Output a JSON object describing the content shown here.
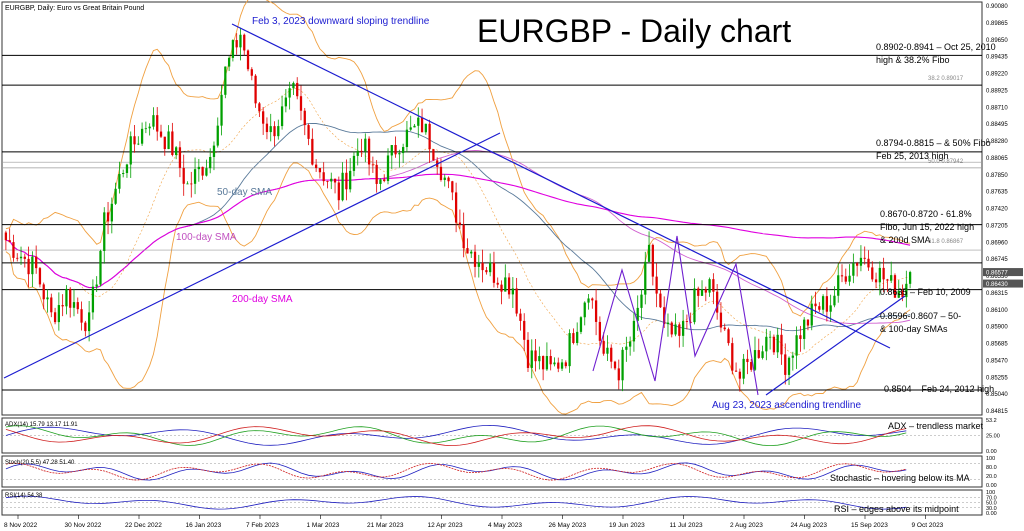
{
  "header": {
    "symbol_line": "EURGBP, Daily:  Euro vs Great Britain Pound"
  },
  "title": "EURGBP - Daily chart",
  "colors": {
    "bull": "#00a000",
    "bear": "#e00000",
    "trendline": "#1c1cd0",
    "sma50": "#5a7a9a",
    "sma100": "#d060d0",
    "sma200": "#e000e0",
    "bands": "#f0a040",
    "level": "#000000",
    "fibo": "#9a9a9a",
    "indicator": "#2020c0",
    "signal": "#d02020"
  },
  "chart_data": [
    {
      "type": "candlestick",
      "title": "EURGBP - Daily chart",
      "ylim": [
        0.8474,
        0.9008
      ],
      "y_ticks": [
        "0.90080",
        "0.89865",
        "0.89650",
        "0.89435",
        "0.89220",
        "0.88925",
        "0.88710",
        "0.88495",
        "0.88280",
        "0.88065",
        "0.87850",
        "0.87635",
        "0.87420",
        "0.87205",
        "0.86960",
        "0.86745",
        "0.86530",
        "0.86315",
        "0.86100",
        "0.85900",
        "0.85685",
        "0.85470",
        "0.85255",
        "0.85040",
        "0.84815"
      ],
      "x_ticks": [
        "8 Nov 2022",
        "30 Nov 2022",
        "22 Dec 2022",
        "16 Jan 2023",
        "7 Feb 2023",
        "1 Mar 2023",
        "21 Mar 2023",
        "12 Apr 2023",
        "4 May 2023",
        "26 May 2023",
        "19 Jun 2023",
        "11 Jul 2023",
        "2 Aug 2023",
        "24 Aug 2023",
        "15 Sep 2023",
        "9 Oct 2023"
      ],
      "price_labels": [
        "0.86577",
        "0.86430"
      ],
      "path_points": [
        {
          "i": 0,
          "p": 0.87
        },
        {
          "i": 8,
          "p": 0.866
        },
        {
          "i": 12,
          "p": 0.86
        },
        {
          "i": 16,
          "p": 0.863
        },
        {
          "i": 22,
          "p": 0.859
        },
        {
          "i": 26,
          "p": 0.872
        },
        {
          "i": 32,
          "p": 0.881
        },
        {
          "i": 38,
          "p": 0.886
        },
        {
          "i": 44,
          "p": 0.882
        },
        {
          "i": 48,
          "p": 0.877
        },
        {
          "i": 54,
          "p": 0.881
        },
        {
          "i": 58,
          "p": 0.892
        },
        {
          "i": 62,
          "p": 0.897
        },
        {
          "i": 66,
          "p": 0.888
        },
        {
          "i": 70,
          "p": 0.884
        },
        {
          "i": 76,
          "p": 0.889
        },
        {
          "i": 82,
          "p": 0.88
        },
        {
          "i": 88,
          "p": 0.876
        },
        {
          "i": 94,
          "p": 0.883
        },
        {
          "i": 98,
          "p": 0.877
        },
        {
          "i": 104,
          "p": 0.883
        },
        {
          "i": 110,
          "p": 0.885
        },
        {
          "i": 114,
          "p": 0.881
        },
        {
          "i": 118,
          "p": 0.875
        },
        {
          "i": 122,
          "p": 0.869
        },
        {
          "i": 128,
          "p": 0.866
        },
        {
          "i": 134,
          "p": 0.864
        },
        {
          "i": 138,
          "p": 0.855
        },
        {
          "i": 144,
          "p": 0.853
        },
        {
          "i": 148,
          "p": 0.855
        },
        {
          "i": 154,
          "p": 0.864
        },
        {
          "i": 158,
          "p": 0.855
        },
        {
          "i": 162,
          "p": 0.853
        },
        {
          "i": 166,
          "p": 0.858
        },
        {
          "i": 170,
          "p": 0.868
        },
        {
          "i": 174,
          "p": 0.858
        },
        {
          "i": 178,
          "p": 0.857
        },
        {
          "i": 182,
          "p": 0.862
        },
        {
          "i": 186,
          "p": 0.864
        },
        {
          "i": 190,
          "p": 0.857
        },
        {
          "i": 194,
          "p": 0.852
        },
        {
          "i": 198,
          "p": 0.855
        },
        {
          "i": 202,
          "p": 0.858
        },
        {
          "i": 206,
          "p": 0.854
        },
        {
          "i": 210,
          "p": 0.858
        },
        {
          "i": 214,
          "p": 0.861
        },
        {
          "i": 218,
          "p": 0.862
        },
        {
          "i": 222,
          "p": 0.866
        },
        {
          "i": 226,
          "p": 0.868
        },
        {
          "i": 230,
          "p": 0.866
        },
        {
          "i": 234,
          "p": 0.864
        },
        {
          "i": 237,
          "p": 0.8635
        },
        {
          "i": 239,
          "p": 0.8658
        }
      ],
      "candle_count": 240
    }
  ],
  "annotations": {
    "trend_down": "Feb 3, 2023 downward sloping trendline",
    "trend_up": "Aug 23, 2023 ascending trendline",
    "sma50": "50-day SMA",
    "sma100": "100-day SMA",
    "sma200": "200-day SMA",
    "lvl1_a": "0.8902-0.8941 – Oct 25, 2010",
    "lvl1_b": "high & 38.2% Fibo",
    "lvl2_a": "0.8794-0.8815 – & 50% Fibo",
    "lvl2_b": "Feb 25, 2013 high",
    "lvl3_a": "0.8670-0.8720 - 61.8%",
    "lvl3_b": "Fibo, Jun 15, 2022 high",
    "lvl3_c": "& 200d SMA",
    "lvl4": "0.8635 – Feb 10, 2009",
    "lvl5_a": "0.8596-0.8607 – 50-",
    "lvl5_b": "& 100-day SMAs",
    "lvl6": "0.8504 – Feb 24, 2012 high",
    "fibo382": "38.2 0.89017",
    "fibo500": "50.0 0.87942",
    "fibo618": "61.8 0.86867"
  },
  "adx": {
    "label": "ADX(14) 15.79 13.17 11.91",
    "note": "ADX – trendless market",
    "ticks": [
      "53.2",
      "25.00",
      "0.00"
    ]
  },
  "stoch": {
    "label": "Stoch(20,5,5) 47.28 51.40",
    "note": "Stochastic – hovering below its MA",
    "ticks": [
      "100",
      "80.0",
      "20.0",
      "0.00"
    ]
  },
  "rsi": {
    "label": "RSI(14) 54.38",
    "note": "RSI – edges above its midpoint",
    "ticks": [
      "100",
      "70.0",
      "50.0",
      "30.0",
      "0.00"
    ]
  }
}
